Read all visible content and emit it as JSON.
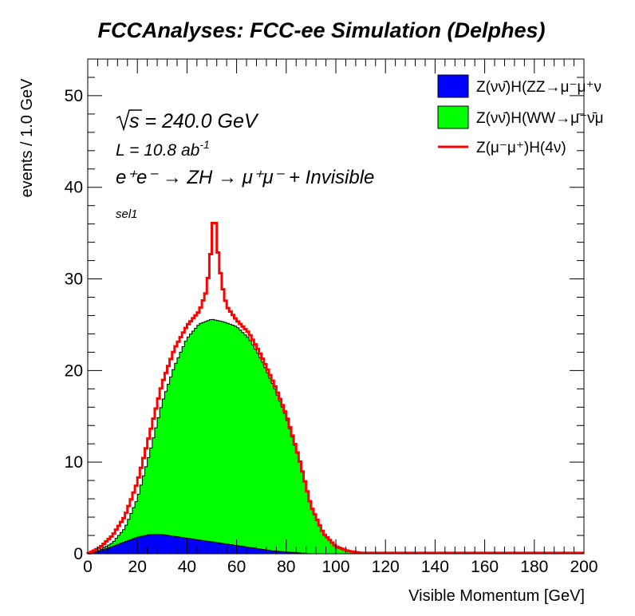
{
  "chart_data": {
    "type": "area",
    "title": "FCCAnalyses: FCC-ee Simulation (Delphes)",
    "xlabel": "Visible Momentum [GeV]",
    "ylabel": "events / 1.0 GeV",
    "xlim": [
      0,
      200
    ],
    "ylim": [
      0,
      54
    ],
    "x_ticks": [
      0,
      20,
      40,
      60,
      80,
      100,
      120,
      140,
      160,
      180,
      200
    ],
    "y_ticks": [
      0,
      10,
      20,
      30,
      40,
      50
    ],
    "annotations": {
      "sqrt_s": "s = 240.0 GeV",
      "lumi": "L = 10.8 ab",
      "lumi_exp": "-1",
      "process": "e⁺e⁻ → ZH → μ⁺μ⁻ + Invisible",
      "selection": "sel1"
    },
    "legend_position": "top-right",
    "series": [
      {
        "name": "Z(νν̄)H(ZZ→μ⁻μ⁺ν",
        "style": "stacked-fill",
        "color": "#0000ff",
        "x": [
          0,
          5,
          10,
          15,
          20,
          25,
          30,
          35,
          40,
          45,
          50,
          55,
          60,
          65,
          70,
          75,
          80,
          85,
          90,
          100,
          110,
          200
        ],
        "values": [
          0,
          0.3,
          0.8,
          1.3,
          1.8,
          2.1,
          2.1,
          1.9,
          1.7,
          1.5,
          1.3,
          1.1,
          0.9,
          0.7,
          0.5,
          0.3,
          0.2,
          0.1,
          0,
          0,
          0,
          0
        ]
      },
      {
        "name": "Z(νν̄)H(WW→μ⁻ν̄μ",
        "style": "stacked-fill",
        "color": "#00ff00",
        "x": [
          0,
          5,
          10,
          15,
          20,
          25,
          30,
          35,
          40,
          45,
          50,
          55,
          60,
          65,
          70,
          75,
          80,
          85,
          90,
          95,
          100,
          105,
          110,
          200
        ],
        "values": [
          0,
          0.4,
          1.2,
          2.8,
          6.0,
          11.0,
          16.5,
          20.5,
          23.5,
          25.1,
          25.6,
          25.3,
          24.8,
          23.5,
          21.2,
          18.3,
          15.0,
          10.5,
          5.2,
          2.2,
          0.8,
          0.3,
          0.1,
          0.1
        ]
      },
      {
        "name": "Z(μ⁻μ⁺)H(4ν)",
        "style": "line",
        "color": "#ff0000",
        "x": [
          0,
          5,
          10,
          15,
          20,
          25,
          30,
          35,
          40,
          45,
          48,
          50,
          51,
          52,
          54,
          56,
          60,
          65,
          70,
          75,
          80,
          85,
          90,
          95,
          100,
          105,
          110,
          200
        ],
        "values": [
          0,
          0.7,
          2.0,
          4.1,
          7.8,
          13.1,
          18.6,
          22.4,
          24.9,
          26.5,
          28.8,
          34.0,
          38.2,
          34.0,
          29.5,
          27.0,
          25.5,
          24.1,
          21.6,
          18.6,
          15.2,
          10.6,
          5.2,
          2.2,
          0.8,
          0.3,
          0.1,
          0.1
        ]
      }
    ]
  }
}
